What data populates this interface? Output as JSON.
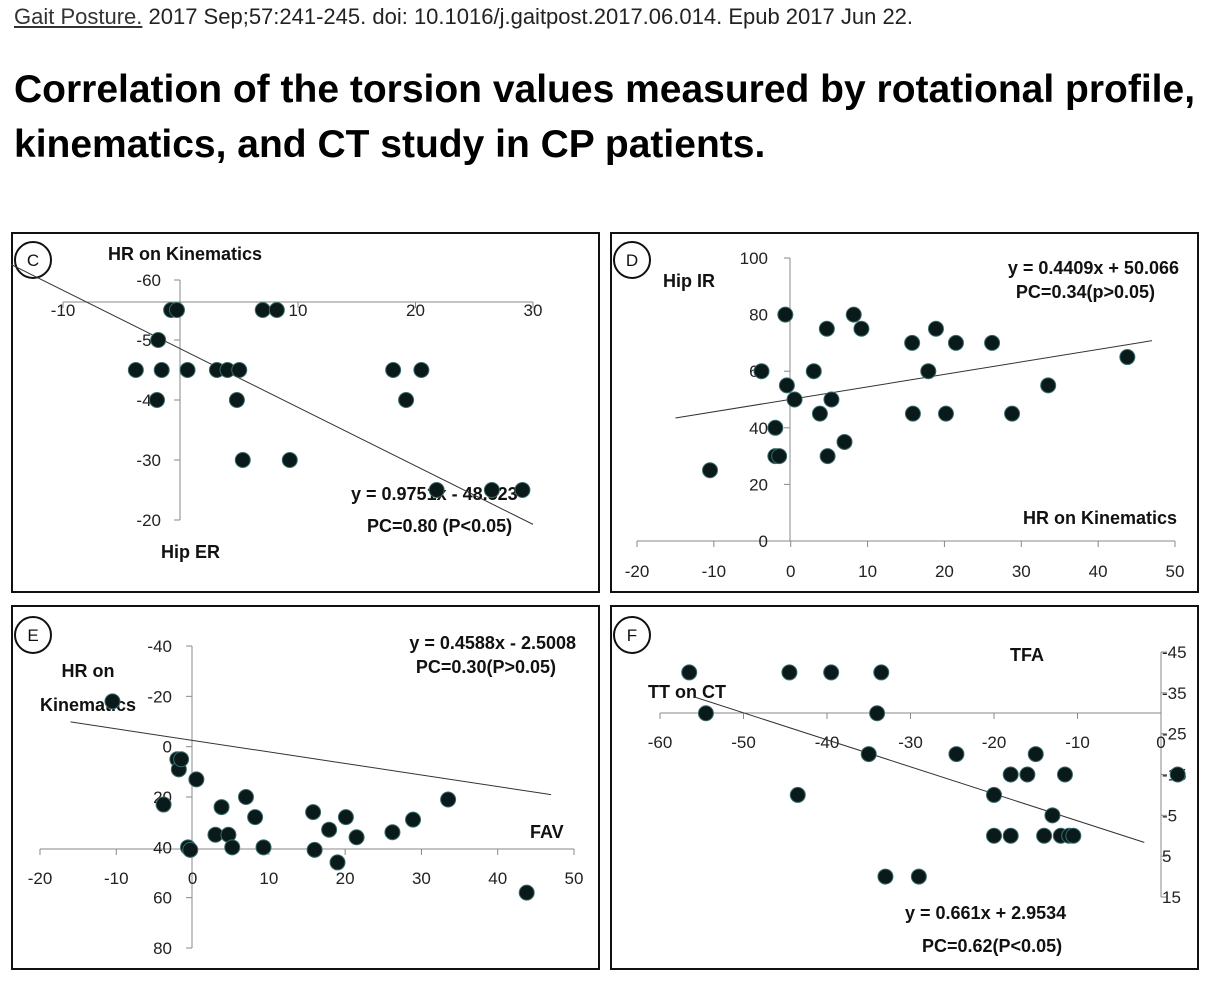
{
  "citation": {
    "journal": "Gait Posture.",
    "rest": " 2017 Sep;57:241-245. doi: 10.1016/j.gaitpost.2017.06.014. Epub 2017 Jun 22."
  },
  "title": "Correlation of the torsion values measured by rotational profile, kinematics, and CT study in CP patients.",
  "colors": {
    "point": "#0a1a1a",
    "line": "#333333",
    "frame": "#111111"
  },
  "chart_data": [
    {
      "panel": "C",
      "type": "scatter",
      "xlabel": "HR on Kinematics",
      "ylabel": "Hip ER",
      "xlim": [
        -10,
        30
      ],
      "ylim": [
        -60,
        -20
      ],
      "xticks": [
        "-10",
        "0",
        "10",
        "20",
        "30"
      ],
      "yticks": [
        "-20",
        "-30",
        "-40",
        "-50",
        "-60"
      ],
      "equation": "y = 0.9751x - 48.523",
      "pc": "PC=0.80 (P<0.05)",
      "trend": {
        "slope": 0.9751,
        "intercept": -48.523
      },
      "points": [
        [
          -3.8,
          -45
        ],
        [
          -2,
          -40
        ],
        [
          -1.6,
          -45
        ],
        [
          -1.9,
          -50
        ],
        [
          -0.8,
          -55
        ],
        [
          -0.3,
          -55
        ],
        [
          0.6,
          -45
        ],
        [
          3.1,
          -45
        ],
        [
          4,
          -45
        ],
        [
          4.8,
          -40
        ],
        [
          5,
          -45
        ],
        [
          5.3,
          -30
        ],
        [
          7,
          -55
        ],
        [
          8.2,
          -55
        ],
        [
          9.3,
          -30
        ],
        [
          18.1,
          -45
        ],
        [
          19.2,
          -40
        ],
        [
          20.5,
          -45
        ],
        [
          21.8,
          -25
        ],
        [
          26.5,
          -25
        ],
        [
          29.1,
          -25
        ]
      ]
    },
    {
      "panel": "D",
      "type": "scatter",
      "xlabel": "HR on Kinematics",
      "ylabel": "Hip IR",
      "xlim": [
        -20,
        50
      ],
      "ylim": [
        0,
        100
      ],
      "xticks": [
        "-20",
        "-10",
        "0",
        "10",
        "20",
        "30",
        "40",
        "50"
      ],
      "yticks": [
        "0",
        "20",
        "40",
        "60",
        "80",
        "100"
      ],
      "equation": "y = 0.4409x + 50.066",
      "pc": "PC=0.34(p>0.05)",
      "trend": {
        "slope": 0.4409,
        "intercept": 50.066
      },
      "points": [
        [
          -10.5,
          25
        ],
        [
          -3.8,
          60
        ],
        [
          -2,
          40
        ],
        [
          -2,
          30
        ],
        [
          -1.5,
          30
        ],
        [
          -0.7,
          80
        ],
        [
          -0.5,
          55
        ],
        [
          0.5,
          50
        ],
        [
          3,
          60
        ],
        [
          3.8,
          45
        ],
        [
          4.7,
          75
        ],
        [
          4.8,
          30
        ],
        [
          5.3,
          50
        ],
        [
          7,
          35
        ],
        [
          8.2,
          80
        ],
        [
          9.2,
          75
        ],
        [
          15.8,
          70
        ],
        [
          15.9,
          45
        ],
        [
          17.9,
          60
        ],
        [
          18.9,
          75
        ],
        [
          20.2,
          45
        ],
        [
          21.5,
          70
        ],
        [
          26.2,
          70
        ],
        [
          28.8,
          45
        ],
        [
          33.5,
          55
        ],
        [
          43.8,
          65
        ]
      ]
    },
    {
      "panel": "E",
      "type": "scatter",
      "xlabel": "FAV",
      "ylabel_lines": [
        "HR on",
        "Kinematics"
      ],
      "xlim": [
        -20,
        50
      ],
      "ylim": [
        -40,
        80
      ],
      "xticks": [
        "-20",
        "-10",
        "0",
        "10",
        "20",
        "30",
        "40",
        "50"
      ],
      "yticks": [
        "80",
        "60",
        "40",
        "20",
        "0",
        "-20",
        "-40"
      ],
      "equation": "y = 0.4588x - 2.5008",
      "pc": "PC=0.30(P>0.05)",
      "trend": {
        "slope": 0.4588,
        "intercept": -2.5008
      },
      "points": [
        [
          -10.5,
          -18
        ],
        [
          -3.8,
          23
        ],
        [
          -2,
          5
        ],
        [
          -1.8,
          9
        ],
        [
          -1.5,
          5
        ],
        [
          -0.6,
          40
        ],
        [
          -0.3,
          41
        ],
        [
          0.5,
          13
        ],
        [
          3,
          35
        ],
        [
          3.8,
          24
        ],
        [
          4.7,
          35
        ],
        [
          5.2,
          40
        ],
        [
          7,
          20
        ],
        [
          8.2,
          28
        ],
        [
          9.3,
          40
        ],
        [
          15.8,
          26
        ],
        [
          16,
          41
        ],
        [
          17.9,
          33
        ],
        [
          19,
          46
        ],
        [
          20.1,
          28
        ],
        [
          21.5,
          36
        ],
        [
          26.2,
          34
        ],
        [
          28.9,
          29
        ],
        [
          33.5,
          21
        ],
        [
          43.8,
          58
        ]
      ]
    },
    {
      "panel": "F",
      "type": "scatter",
      "xlabel": "TFA",
      "ylabel": "TT on CT",
      "xlim": [
        -60,
        0
      ],
      "ylim": [
        -45,
        15
      ],
      "xticks": [
        "-60",
        "-50",
        "-40",
        "-30",
        "-20",
        "-10",
        "0"
      ],
      "yticks": [
        "15",
        "5",
        "-5",
        "-15",
        "-25",
        "-35",
        "-45"
      ],
      "equation": "y = 0.661x + 2.9534",
      "pc": "PC=0.62(P<0.05)",
      "trend": {
        "slope": 0.661,
        "intercept": 2.9534
      },
      "points": [
        [
          -56.5,
          -40
        ],
        [
          -54.5,
          -30
        ],
        [
          -43.5,
          -10
        ],
        [
          -44.5,
          -40
        ],
        [
          -39.5,
          -40
        ],
        [
          -35,
          -20
        ],
        [
          -34,
          -30
        ],
        [
          -33.5,
          -40
        ],
        [
          -33,
          10
        ],
        [
          -29,
          10
        ],
        [
          -24.5,
          -20
        ],
        [
          -20,
          -10
        ],
        [
          -20,
          0
        ],
        [
          -18,
          0
        ],
        [
          -18,
          -15
        ],
        [
          -16,
          -15
        ],
        [
          -15,
          -20
        ],
        [
          -14,
          0
        ],
        [
          -13,
          -5
        ],
        [
          -12,
          0
        ],
        [
          -11.5,
          -15
        ],
        [
          -11,
          0
        ],
        [
          -10.5,
          0
        ],
        [
          2,
          -15
        ]
      ]
    }
  ]
}
